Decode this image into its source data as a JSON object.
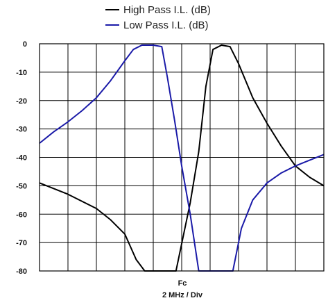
{
  "chart_data": {
    "type": "line",
    "title": "",
    "xlabel_top": "Fc",
    "xlabel": "2 MHz / Div",
    "ylabel": "",
    "ylim": [
      -80,
      0
    ],
    "yticks": [
      0,
      -10,
      -20,
      -30,
      -40,
      -50,
      -60,
      -70,
      -80
    ],
    "xlim": [
      -10,
      10
    ],
    "x_divisions": 10,
    "grid": true,
    "legend_position": "top",
    "series": [
      {
        "name": "High Pass I.L. (dB)",
        "color": "#000000",
        "x": [
          -10,
          -8,
          -6,
          -5,
          -4,
          -3.2,
          -2.6,
          -1.6,
          -0.4,
          0.6,
          1.2,
          1.7,
          2.2,
          2.8,
          3.4,
          4,
          5,
          6,
          7,
          8,
          9,
          10
        ],
        "y": [
          -49,
          -53,
          -58,
          -62,
          -67,
          -76,
          -80,
          -80,
          -80,
          -56,
          -38,
          -15,
          -2,
          -0.5,
          -1,
          -7,
          -19,
          -28,
          -36,
          -43,
          -47,
          -50
        ]
      },
      {
        "name": "Low Pass I.L. (dB)",
        "color": "#1a1aa8",
        "x": [
          -10,
          -9,
          -8,
          -7,
          -6,
          -5,
          -4,
          -3.4,
          -2.8,
          -2,
          -1.4,
          -1,
          -0.5,
          0,
          0.6,
          1.2,
          3.6,
          4.2,
          5,
          6,
          7,
          8,
          9,
          10
        ],
        "y": [
          -35,
          -31,
          -27.5,
          -23.5,
          -19,
          -13,
          -6,
          -2,
          -0.5,
          -0.5,
          -1,
          -12,
          -27,
          -43,
          -60,
          -80,
          -80,
          -65,
          -55,
          -49,
          -45.5,
          -43,
          -41,
          -39
        ]
      }
    ]
  }
}
